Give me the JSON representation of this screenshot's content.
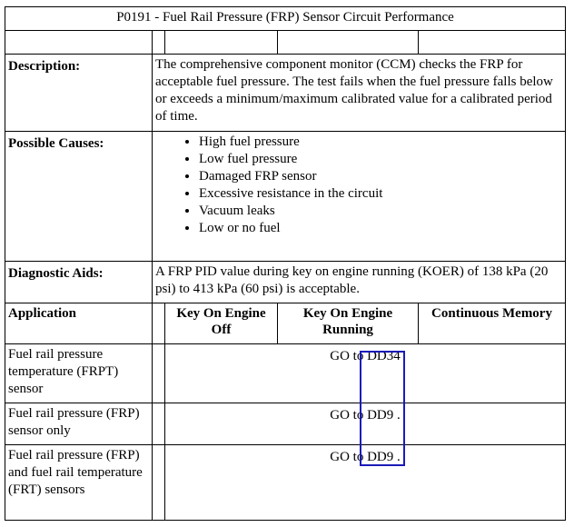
{
  "title": "P0191 - Fuel Rail Pressure (FRP) Sensor Circuit Performance",
  "description": {
    "label": "Description:",
    "text": "The comprehensive component monitor (CCM) checks the FRP for acceptable fuel pressure. The test fails when the fuel pressure falls below or exceeds a minimum/maximum calibrated value for a calibrated period of time."
  },
  "possible_causes": {
    "label": "Possible Causes:",
    "items": [
      "High fuel pressure",
      "Low fuel pressure",
      "Damaged FRP sensor",
      "Excessive resistance in the circuit",
      "Vacuum leaks",
      "Low or no fuel"
    ]
  },
  "diagnostic_aids": {
    "label": "Diagnostic Aids:",
    "text": "A FRP PID value during key on engine running (KOER) of 138 kPa (20 psi) to 413 kPa (60 psi) is acceptable."
  },
  "application_table": {
    "headers": [
      "Application",
      "Key On Engine Off",
      "Key On Engine Running",
      "Continuous Memory"
    ],
    "rows": [
      {
        "application": "Fuel rail pressure temperature (FRPT) sensor",
        "action": "GO to",
        "target": "DD34"
      },
      {
        "application": "Fuel rail pressure (FRP) sensor only",
        "action": "GO to",
        "target": "DD9",
        "suffix": "."
      },
      {
        "application": "Fuel rail pressure (FRP) and fuel rail temperature (FRT) sensors",
        "action": "GO to",
        "target": "DD9",
        "suffix": "."
      }
    ]
  }
}
